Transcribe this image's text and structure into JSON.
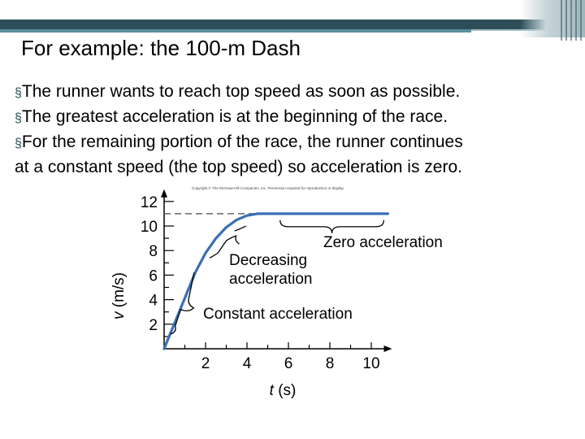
{
  "slide": {
    "title": "For example: the 100-m Dash",
    "bullet_mark": "§",
    "bullets": [
      "The runner wants to reach top speed as soon as possible.",
      "The greatest acceleration is at the beginning of the race.",
      "For the remaining portion of the race, the runner continues",
      "at a constant speed (the top speed) so acceleration is zero."
    ]
  },
  "colors": {
    "curve": "#3a6fb6",
    "axis": "#000000",
    "dashed": "#666666",
    "header_dark": "#2d4e59",
    "header_light": "#5b8f9c"
  },
  "chart_data": {
    "type": "line",
    "copyright": "Copyright © The McGraw-Hill Companies, Inc. Permission required for reproduction or display.",
    "xlabel_var": "t",
    "xlabel_unit": " (s)",
    "ylabel_var": "v",
    "ylabel_unit": " (m/s)",
    "xlim": [
      0,
      11
    ],
    "ylim": [
      0,
      13
    ],
    "xticks": [
      2,
      4,
      6,
      8,
      10
    ],
    "yticks": [
      2,
      4,
      6,
      8,
      10,
      12
    ],
    "top_speed": 11,
    "series": [
      {
        "x": [
          0,
          1.5,
          2,
          2.5,
          3,
          3.5,
          4,
          4.5,
          5,
          6,
          8,
          10,
          10.8
        ],
        "y": [
          0,
          6.2,
          7.8,
          9.0,
          9.9,
          10.5,
          10.85,
          11,
          11,
          11,
          11,
          11,
          11
        ]
      }
    ],
    "annotations": [
      "Zero acceleration",
      "Decreasing",
      "acceleration",
      "Constant acceleration"
    ]
  }
}
